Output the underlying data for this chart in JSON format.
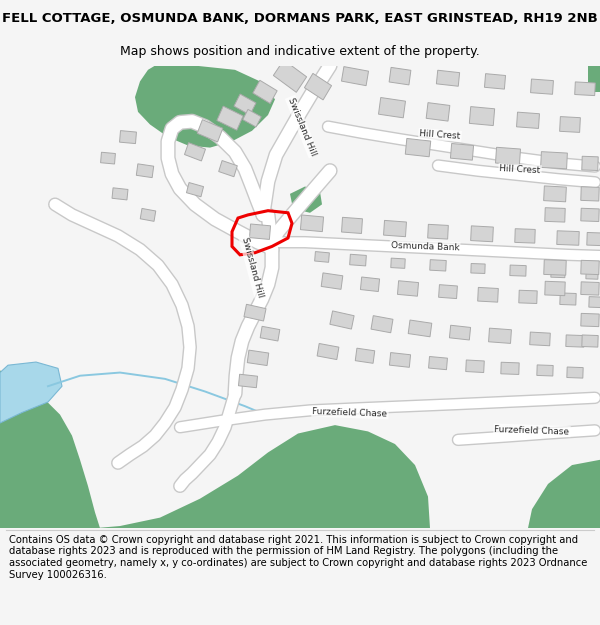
{
  "title_line1": "FELL COTTAGE, OSMUNDA BANK, DORMANS PARK, EAST GRINSTEAD, RH19 2NB",
  "title_line2": "Map shows position and indicative extent of the property.",
  "footer_text": "Contains OS data © Crown copyright and database right 2021. This information is subject to Crown copyright and database rights 2023 and is reproduced with the permission of HM Land Registry. The polygons (including the associated geometry, namely x, y co-ordinates) are subject to Crown copyright and database rights 2023 Ordnance Survey 100026316.",
  "bg_color": "#f5f5f5",
  "map_bg": "#ffffff",
  "green_color": "#6aab7a",
  "blue_color": "#a8d8ea",
  "building_color": "#d4d4d4",
  "building_edge_color": "#aaaaaa",
  "road_border_color": "#c8c8c8",
  "road_fill_color": "#ffffff",
  "red_color": "#ee0000",
  "title_fontsize": 9.5,
  "subtitle_fontsize": 9.0,
  "footer_fontsize": 7.2,
  "label_fontsize": 6.5
}
